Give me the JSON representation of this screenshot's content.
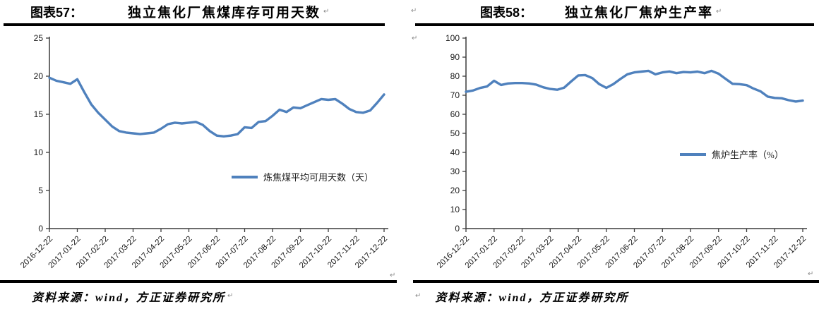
{
  "marks": {
    "pilcrow": "↵"
  },
  "panels": [
    {
      "figure_label": "图表57：",
      "title": "独立焦化厂焦煤库存可用天数",
      "source": "资料来源：wind，方正证券研究所"
    },
    {
      "figure_label": "图表58：",
      "title": "独立焦化厂焦炉生产率",
      "source": "资料来源：wind，方正证券研究所"
    }
  ],
  "chart_data": [
    {
      "type": "line",
      "title": "独立焦化厂焦煤库存可用天数",
      "legend": "炼焦煤平均可用天数（天）",
      "legend_position": "inside-center-right",
      "grid": false,
      "line_color": "#4f81bd",
      "ylim": [
        0,
        25
      ],
      "ytick_step": 5,
      "x_tick_labels": [
        "2016-12-22",
        "2017-01-22",
        "2017-02-22",
        "2017-03-22",
        "2017-04-22",
        "2017-05-22",
        "2017-06-22",
        "2017-07-22",
        "2017-08-22",
        "2017-09-22",
        "2017-10-22",
        "2017-11-22",
        "2017-12-22"
      ],
      "series": [
        {
          "name": "炼焦煤平均可用天数（天）",
          "values": [
            19.8,
            19.4,
            19.2,
            19.0,
            19.6,
            17.9,
            16.3,
            15.2,
            14.3,
            13.4,
            12.8,
            12.6,
            12.5,
            12.4,
            12.5,
            12.6,
            13.1,
            13.7,
            13.9,
            13.8,
            13.9,
            14.0,
            13.6,
            12.8,
            12.2,
            12.1,
            12.2,
            12.4,
            13.3,
            13.2,
            14.0,
            14.1,
            14.8,
            15.6,
            15.3,
            15.9,
            15.8,
            16.2,
            16.6,
            17.0,
            16.9,
            17.0,
            16.4,
            15.7,
            15.3,
            15.2,
            15.5,
            16.5,
            17.6
          ]
        }
      ]
    },
    {
      "type": "line",
      "title": "独立焦化厂焦炉生产率",
      "legend": "焦炉生产率（%）",
      "legend_position": "inside-middle-right",
      "grid": false,
      "line_color": "#4f81bd",
      "ylim": [
        0,
        100
      ],
      "ytick_step": 10,
      "x_tick_labels": [
        "2016-12-22",
        "2017-01-22",
        "2017-02-22",
        "2017-03-22",
        "2017-04-22",
        "2017-05-22",
        "2017-06-22",
        "2017-07-22",
        "2017-08-22",
        "2017-09-22",
        "2017-10-22",
        "2017-11-22",
        "2017-12-22"
      ],
      "series": [
        {
          "name": "焦炉生产率（%）",
          "values": [
            71.8,
            72.5,
            73.8,
            74.6,
            77.6,
            75.4,
            76.2,
            76.4,
            76.4,
            76.2,
            75.6,
            74.2,
            73.3,
            72.9,
            74.0,
            77.3,
            80.4,
            80.6,
            79.0,
            75.8,
            73.9,
            75.8,
            78.5,
            81.0,
            82.0,
            82.4,
            82.8,
            81.0,
            82.0,
            82.5,
            81.6,
            82.2,
            82.0,
            82.4,
            81.6,
            82.8,
            81.3,
            78.6,
            76.0,
            75.8,
            75.3,
            73.5,
            72.0,
            69.3,
            68.6,
            68.4,
            67.4,
            66.7,
            67.2
          ]
        }
      ]
    }
  ]
}
